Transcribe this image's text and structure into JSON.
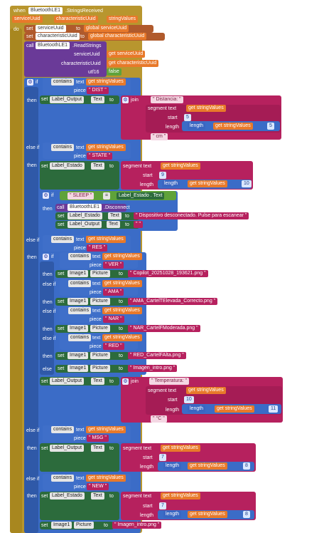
{
  "event": {
    "when": "when",
    "component": "BluetoothLE1",
    "event_name": ".StringsReceived",
    "params": [
      "serviceUuid",
      "characteristicUuid",
      "stringValues"
    ],
    "do": "do"
  },
  "sets": [
    {
      "set": "set",
      "var": "serviceUuid",
      "to": "to",
      "get": "get",
      "value": "global serviceUuid"
    },
    {
      "set": "set",
      "var": "characteristicUuid",
      "to": "to",
      "get": "get",
      "value": "global characteristicUuid"
    }
  ],
  "call_read": {
    "call": "call",
    "component": "BluetoothLE1",
    "method": ".ReadStrings",
    "args": [
      {
        "label": "serviceUuid",
        "get": "get",
        "value": "serviceUuid"
      },
      {
        "label": "characteristicUuid",
        "get": "get",
        "value": "characteristicUuid"
      },
      {
        "label": "utf16",
        "value": "false"
      }
    ]
  },
  "labels": {
    "if": "if",
    "then": "then",
    "else_if": "else if",
    "else": "else",
    "contains": "contains",
    "text": "text",
    "piece": "piece",
    "set": "set",
    "to": "to",
    "get": "get",
    "join": "join",
    "segment_text": "segment text",
    "start": "start",
    "length": "length",
    "call": "call",
    "eq": "="
  },
  "blocks": {
    "dist_piece": "DIST",
    "label_output": "Label_Output",
    "text_prop": "Text",
    "distancia": "Distancia: ",
    "string_values": "stringValues",
    "dist_start": "5",
    "dist_len": "5",
    "cm": " cm ",
    "state_piece": "STATE",
    "label_estado": "Label_Estado",
    "state_start": "9",
    "state_len": "10",
    "sleep": " SLEEP ",
    "disconnect": ".Disconnect",
    "bt": "BluetoothLE1",
    "desc_msg": " Dispositivo desconectado. Pulse para escanear ",
    "empty": " ",
    "res_piece": "RES",
    "ver_piece": "VER",
    "image1": "Image1",
    "picture": "Picture",
    "img_ver": "Copilot_20251028_193621.png",
    "ama_piece": "AMA",
    "img_ama": "AMA_CartelTElevada_Correcto.png",
    "nar_piece": "NAR",
    "img_nar": "NAR_CartelFModerada.png",
    "red_piece": "RED",
    "img_red": "RED_CartelFAlta.png",
    "img_intro": "Imagen_intro.png",
    "temperatura": " Temperatura: ",
    "temp_start": "10",
    "temp_len": "11",
    "degc": " °C ",
    "msg_piece": "MSG",
    "msg_start": "7",
    "msg_len": "8",
    "new_piece": "NEW",
    "new_start": "7",
    "new_len": "8"
  }
}
